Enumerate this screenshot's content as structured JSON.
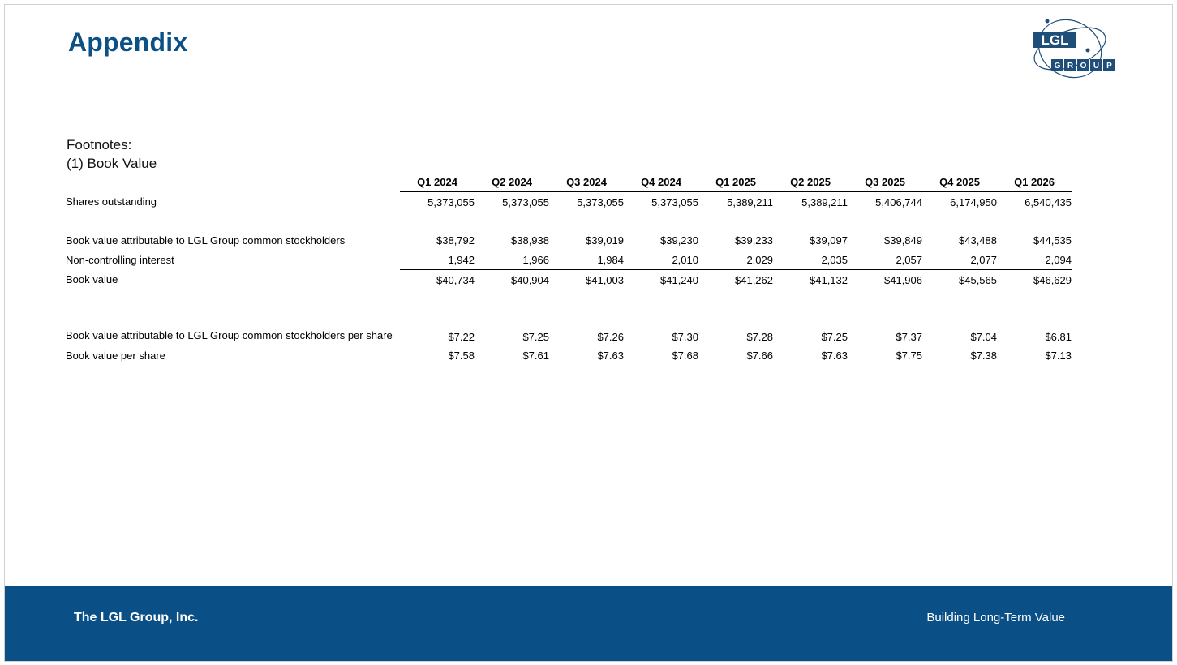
{
  "slide": {
    "title": "Appendix",
    "footnotes_heading": "Footnotes:",
    "footnote_item": "(1) Book Value",
    "logo": {
      "top_text": "LGL",
      "bottom_text": [
        "G",
        "R",
        "O",
        "U",
        "P"
      ],
      "icon": "atom-orbit-logo",
      "color": "#1f4e79"
    }
  },
  "table": {
    "columns": [
      "Q1 2024",
      "Q2 2024",
      "Q3 2024",
      "Q4 2024",
      "Q1 2025",
      "Q2 2025",
      "Q3 2025",
      "Q4 2025",
      "Q1 2026"
    ],
    "rows": {
      "shares": {
        "label": "Shares outstanding",
        "values": [
          "5,373,055",
          "5,373,055",
          "5,373,055",
          "5,373,055",
          "5,389,211",
          "5,389,211",
          "5,406,744",
          "6,174,950",
          "6,540,435"
        ]
      },
      "bv_lgl": {
        "label": "Book value attributable to LGL Group common stockholders",
        "values": [
          "$38,792",
          "$38,938",
          "$39,019",
          "$39,230",
          "$39,233",
          "$39,097",
          "$39,849",
          "$43,488",
          "$44,535"
        ]
      },
      "nci": {
        "label": "Non-controlling interest",
        "values": [
          "1,942",
          "1,966",
          "1,984",
          "2,010",
          "2,029",
          "2,035",
          "2,057",
          "2,077",
          "2,094"
        ]
      },
      "bv": {
        "label": "Book value",
        "values": [
          "$40,734",
          "$40,904",
          "$41,003",
          "$41,240",
          "$41,262",
          "$41,132",
          "$41,906",
          "$45,565",
          "$46,629"
        ]
      },
      "bv_lgl_ps": {
        "label": "Book value attributable to LGL Group common stockholders per share",
        "values": [
          "$7.22",
          "$7.25",
          "$7.26",
          "$7.30",
          "$7.28",
          "$7.25",
          "$7.37",
          "$7.04",
          "$6.81"
        ]
      },
      "bv_ps": {
        "label": "Book value per share",
        "values": [
          "$7.58",
          "$7.61",
          "$7.63",
          "$7.68",
          "$7.66",
          "$7.63",
          "$7.75",
          "$7.38",
          "$7.13"
        ]
      }
    }
  },
  "footer": {
    "company": "The LGL Group, Inc.",
    "tagline": "Building Long-Term Value",
    "background": "#0a4f86"
  }
}
